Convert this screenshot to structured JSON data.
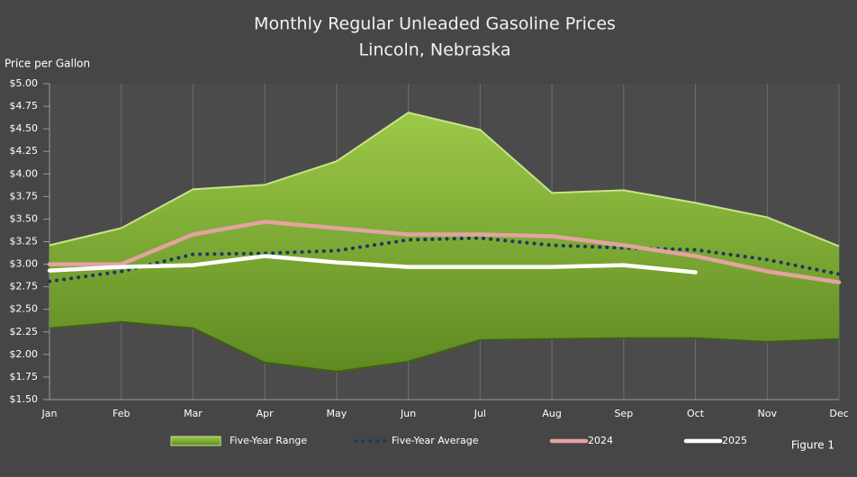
{
  "chart_data": {
    "type": "line",
    "title": "Monthly Regular Unleaded Gasoline Prices",
    "subtitle": "Lincoln, Nebraska",
    "y_label": "Price per Gallon",
    "annotation": "Figure 1",
    "categories": [
      "Jan",
      "Feb",
      "Mar",
      "Apr",
      "May",
      "Jun",
      "Jul",
      "Aug",
      "Sep",
      "Oct",
      "Nov",
      "Dec"
    ],
    "series": [
      {
        "name": "Five-Year Range",
        "color": "#8cb63c",
        "high": [
          3.21,
          3.4,
          3.83,
          3.88,
          4.14,
          4.68,
          4.49,
          3.79,
          3.82,
          3.68,
          3.52,
          3.2
        ],
        "low": [
          2.29,
          2.36,
          2.29,
          1.91,
          1.81,
          1.92,
          2.16,
          2.17,
          2.18,
          2.18,
          2.14,
          2.17
        ]
      },
      {
        "name": "Five-Year Average",
        "color": "#1c3a5e",
        "dotted": true,
        "values": [
          2.81,
          2.92,
          3.11,
          3.12,
          3.15,
          3.27,
          3.29,
          3.21,
          3.18,
          3.16,
          3.05,
          2.89
        ]
      },
      {
        "name": "2024",
        "color": "#e3a3a0",
        "values": [
          3.0,
          3.0,
          3.33,
          3.47,
          3.4,
          3.33,
          3.33,
          3.31,
          3.21,
          3.09,
          2.92,
          2.8
        ]
      },
      {
        "name": "2025",
        "color": "#ffffff",
        "values": [
          2.93,
          2.97,
          2.99,
          3.09,
          3.02,
          2.97,
          2.97,
          2.97,
          2.99,
          2.91,
          null,
          null
        ]
      }
    ],
    "ylim": [
      1.5,
      5.0
    ],
    "yticks": [
      {
        "value": 1.5,
        "label": "$1.50"
      },
      {
        "value": 1.75,
        "label": "$1.75"
      },
      {
        "value": 2.0,
        "label": "$2.00"
      },
      {
        "value": 2.25,
        "label": "$2.25"
      },
      {
        "value": 2.5,
        "label": "$2.50"
      },
      {
        "value": 2.75,
        "label": "$2.75"
      },
      {
        "value": 3.0,
        "label": "$3.00"
      },
      {
        "value": 3.25,
        "label": "$3.25"
      },
      {
        "value": 3.5,
        "label": "$3.50"
      },
      {
        "value": 3.75,
        "label": "$3.75"
      },
      {
        "value": 4.0,
        "label": "$4.00"
      },
      {
        "value": 4.25,
        "label": "$4.25"
      },
      {
        "value": 4.5,
        "label": "$4.50"
      },
      {
        "value": 4.75,
        "label": "$4.75"
      },
      {
        "value": 5.0,
        "label": "$5.00"
      }
    ],
    "grid": true
  }
}
